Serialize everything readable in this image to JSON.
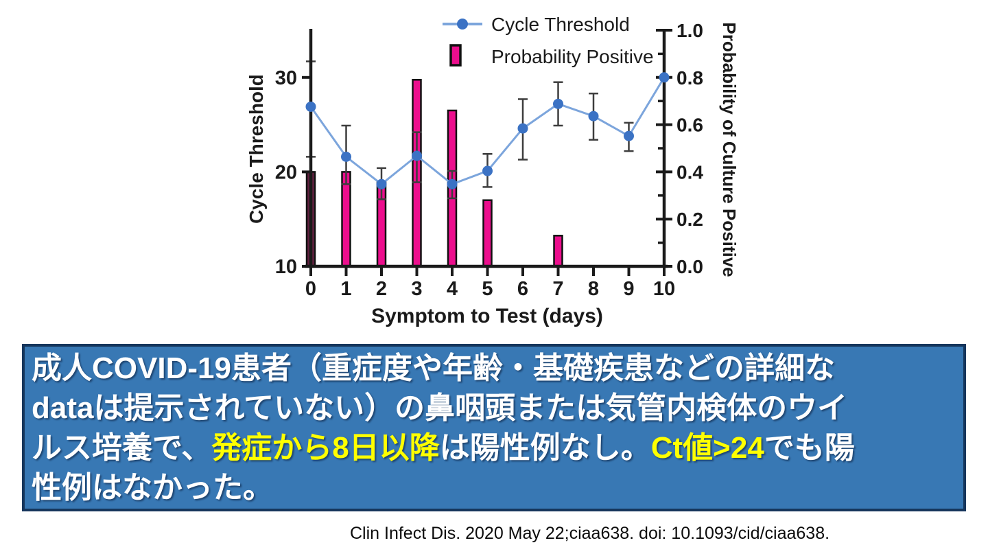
{
  "chart_data": {
    "type": "bar+line",
    "title": "",
    "x": [
      0,
      1,
      2,
      3,
      4,
      5,
      6,
      7,
      8,
      9,
      10
    ],
    "x_tick_labels": [
      "0",
      "1",
      "2",
      "3",
      "4",
      "5",
      "6",
      "7",
      "8",
      "9",
      "10"
    ],
    "xlabel": "Symptom to Test (days)",
    "left_axis": {
      "label": "Cycle Threshold",
      "range": [
        10,
        35
      ],
      "tick_values": [
        10,
        20,
        30
      ],
      "tick_labels": [
        "10",
        "20",
        "30"
      ]
    },
    "right_axis": {
      "label": "Probability of Culture Positive",
      "range": [
        0,
        1
      ],
      "tick_values": [
        0,
        0.2,
        0.4,
        0.6,
        0.8,
        1
      ],
      "tick_labels": [
        "0.0",
        "0.2",
        "0.4",
        "0.6",
        "0.8",
        "1.0"
      ],
      "minor_tick_values": [
        0.1,
        0.3,
        0.5,
        0.7,
        0.9
      ]
    },
    "series": [
      {
        "name": "Cycle Threshold",
        "type": "line",
        "axis": "left",
        "values": [
          26.9,
          21.6,
          18.7,
          21.7,
          18.7,
          20.1,
          24.6,
          27.2,
          25.9,
          23.8,
          30.0
        ],
        "err_high": [
          31.7,
          24.9,
          20.4,
          24.2,
          20.1,
          21.9,
          27.7,
          29.5,
          28.3,
          25.2,
          null
        ],
        "err_low": [
          21.6,
          18.7,
          17.1,
          18.9,
          17.2,
          18.4,
          21.3,
          24.9,
          23.4,
          22.2,
          null
        ]
      },
      {
        "name": "Probability Positive",
        "type": "bar",
        "axis": "right",
        "values": [
          0.4,
          0.4,
          0.36,
          0.79,
          0.66,
          0.28,
          0,
          0.13,
          0,
          0,
          0
        ]
      }
    ],
    "legend": [
      "Cycle Threshold",
      "Probability Positive"
    ],
    "legend_position": "top",
    "grid": false,
    "colors": {
      "line": "#7ca5dc",
      "marker": "#3b72c4",
      "bar": "#ec0e8d",
      "bar_day0": "#622140",
      "error": "#3d3d3d",
      "axis": "#1a1a1a"
    }
  },
  "caption": {
    "background": "#3878b4",
    "border": "#16365c",
    "text_color": "#ffffff",
    "highlight_color": "#ffff00",
    "lines": [
      [
        {
          "t": "成人COVID-19患者（重症度や年齢・基礎疾患などの詳細な",
          "hl": false
        }
      ],
      [
        {
          "t": "dataは提示されていない）の鼻咽頭または気管内検体のウイ",
          "hl": false
        }
      ],
      [
        {
          "t": "ルス培養で、",
          "hl": false
        },
        {
          "t": "発症から8日以降",
          "hl": true
        },
        {
          "t": "は陽性例なし。",
          "hl": false
        },
        {
          "t": "Ct値>24",
          "hl": true
        },
        {
          "t": "でも陽",
          "hl": false
        }
      ],
      [
        {
          "t": "性例はなかった。",
          "hl": false
        }
      ]
    ]
  },
  "citation": "Clin Infect Dis. 2020 May 22;ciaa638. doi: 10.1093/cid/ciaa638."
}
